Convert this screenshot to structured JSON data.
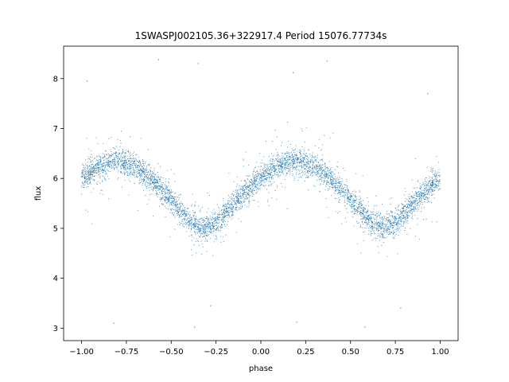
{
  "chart_data": {
    "type": "scatter",
    "title": "1SWASPJ002105.36+322917.4 Period 15076.77734s",
    "xlabel": "phase",
    "ylabel": "flux",
    "xlim": [
      -1.1,
      1.1
    ],
    "ylim": [
      2.75,
      8.65
    ],
    "xticks": [
      -1.0,
      -0.75,
      -0.5,
      -0.25,
      0.0,
      0.25,
      0.5,
      0.75,
      1.0
    ],
    "xtick_labels": [
      "−1.00",
      "−0.75",
      "−0.50",
      "−0.25",
      "0.00",
      "0.25",
      "0.50",
      "0.75",
      "1.00"
    ],
    "yticks": [
      3,
      4,
      5,
      6,
      7,
      8
    ],
    "ytick_labels": [
      "3",
      "4",
      "5",
      "6",
      "7",
      "8"
    ],
    "grid": false,
    "point_color": "#1f77b4",
    "series": [
      {
        "description_points": "phase-folded light curve, sinusoidal modulation",
        "x": [
          -1.0,
          -0.9,
          -0.8,
          -0.75,
          -0.7,
          -0.6,
          -0.5,
          -0.4,
          -0.32,
          -0.25,
          -0.2,
          -0.1,
          0.0,
          0.1,
          0.2,
          0.25,
          0.3,
          0.4,
          0.5,
          0.6,
          0.68,
          0.75,
          0.8,
          0.9,
          1.0
        ],
        "y": [
          6.0,
          6.25,
          6.35,
          6.32,
          6.25,
          5.95,
          5.55,
          5.15,
          5.0,
          5.08,
          5.3,
          5.7,
          6.0,
          6.25,
          6.35,
          6.32,
          6.25,
          5.95,
          5.55,
          5.15,
          5.0,
          5.08,
          5.3,
          5.7,
          6.0
        ]
      }
    ],
    "outliers": [
      {
        "x": -0.97,
        "y": 7.95
      },
      {
        "x": -0.57,
        "y": 8.38
      },
      {
        "x": -0.35,
        "y": 8.3
      },
      {
        "x": 0.18,
        "y": 8.12
      },
      {
        "x": 0.37,
        "y": 8.35
      },
      {
        "x": 0.93,
        "y": 7.7
      },
      {
        "x": -0.82,
        "y": 3.1
      },
      {
        "x": -0.37,
        "y": 3.02
      },
      {
        "x": 0.2,
        "y": 3.12
      },
      {
        "x": 0.58,
        "y": 3.02
      },
      {
        "x": -0.28,
        "y": 3.45
      },
      {
        "x": 0.78,
        "y": 3.4
      }
    ]
  }
}
